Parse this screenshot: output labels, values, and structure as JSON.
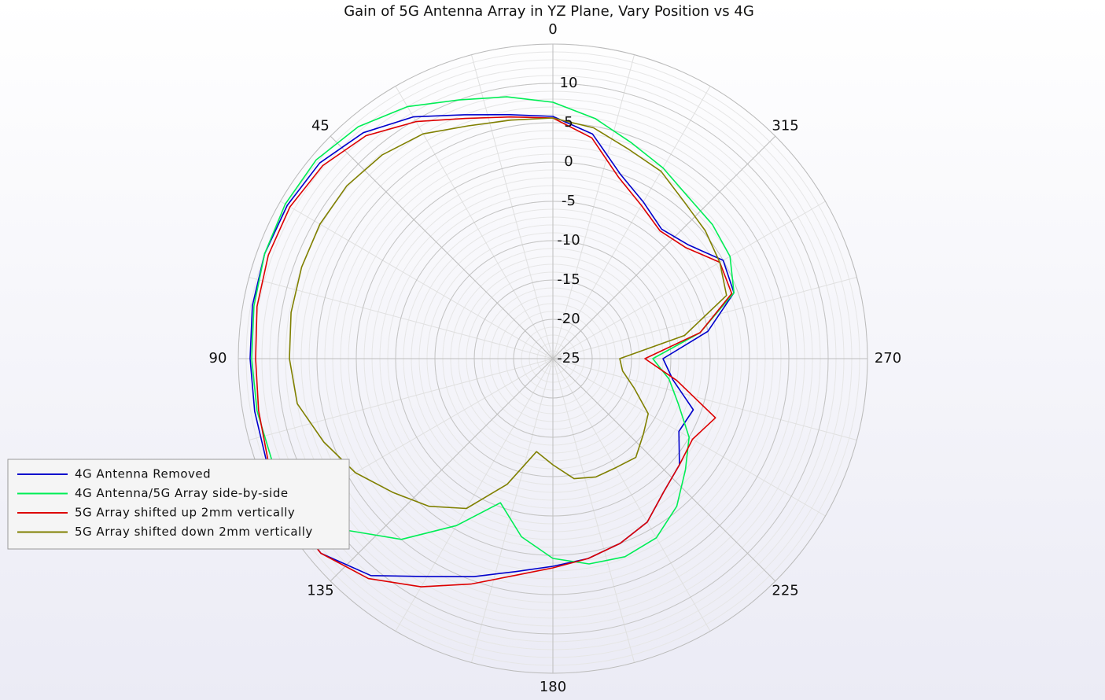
{
  "chart_data": {
    "type": "polar",
    "title": "Gain of 5G Antenna Array in YZ Plane, Vary Position vs 4G",
    "theta": [
      0,
      10,
      20,
      30,
      40,
      50,
      60,
      70,
      80,
      90,
      100,
      110,
      120,
      130,
      140,
      150,
      160,
      170,
      180,
      190,
      200,
      210,
      220,
      230,
      240,
      250,
      260,
      270,
      280,
      290,
      300,
      310,
      320,
      330,
      340,
      350
    ],
    "rlim": [
      -25,
      15
    ],
    "rticks": [
      -25,
      -20,
      -15,
      -10,
      -5,
      0,
      5,
      10
    ],
    "thetaticks": [
      0,
      45,
      90,
      135,
      180,
      225,
      270,
      315
    ],
    "series": [
      {
        "name": "4G Antenna Removed",
        "color": "#0000cc",
        "values": [
          5.8,
          6.5,
          8,
          10.5,
          12.5,
          13.7,
          14,
          14,
          13.8,
          13.5,
          13.5,
          13.7,
          13.8,
          13.5,
          11,
          7,
          4.5,
          2.5,
          1.4,
          0.8,
          0,
          -1,
          -3,
          -4,
          -6.5,
          -6,
          -9.5,
          -11,
          -5,
          -0.5,
          0,
          -2.5,
          -3.5,
          -2,
          0,
          4
        ]
      },
      {
        "name": "4G Antenna/5G Array side-by-side",
        "color": "#00ee55",
        "values": [
          7.6,
          8.8,
          10,
          12,
          13.5,
          14.3,
          14.3,
          14,
          13.6,
          13.3,
          13.2,
          13,
          12,
          9,
          5,
          -0.5,
          -5.5,
          -2,
          0.4,
          1.5,
          1.8,
          1.3,
          -0.5,
          -3,
          -5,
          -8,
          -10,
          -12.3,
          -6,
          -0.5,
          1,
          1.5,
          1.8,
          3,
          4.2,
          6
        ]
      },
      {
        "name": "5G Array shifted up 2mm vertically",
        "color": "#dd0000",
        "values": [
          5.6,
          6.2,
          7.5,
          9.8,
          12,
          13.2,
          13.6,
          13.5,
          13.2,
          12.8,
          13,
          13.5,
          14,
          13.5,
          11.5,
          8.5,
          5.5,
          3,
          1.6,
          0.8,
          0,
          -1,
          -3,
          -4,
          -4.5,
          -3,
          -9,
          -13.3,
          -6,
          -0.8,
          -0.5,
          -3,
          -3.8,
          -2.5,
          -0.5,
          3.5
        ]
      },
      {
        "name": "5G Array shifted down 2mm vertically",
        "color": "#808000",
        "values": [
          5.6,
          5.8,
          6.5,
          8,
          8.8,
          9.2,
          9.2,
          9,
          8.8,
          8.5,
          8,
          6,
          4,
          1.5,
          -0.5,
          -3,
          -8,
          -13,
          -11.5,
          -9.5,
          -9,
          -9,
          -8.6,
          -10,
          -11,
          -14,
          -16,
          -16.5,
          -8,
          -1.5,
          -0.5,
          0.3,
          1,
          2.5,
          3.3,
          4.8
        ]
      }
    ]
  }
}
